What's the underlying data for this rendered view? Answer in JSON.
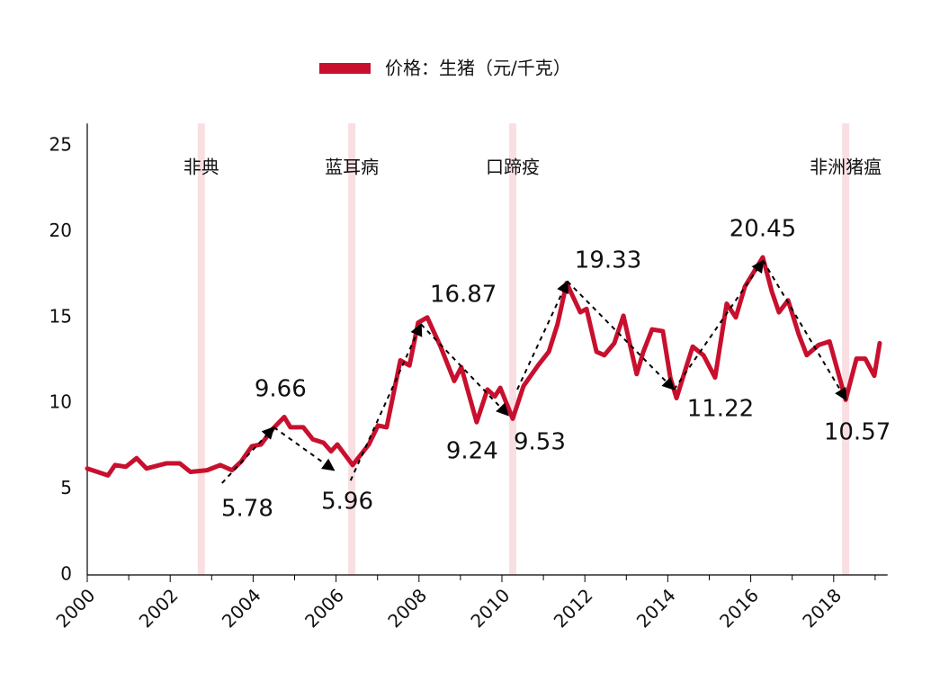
{
  "chart_data": {
    "type": "line",
    "legend": "价格：生猪（元/千克）",
    "series": [
      {
        "name": "价格：生猪（元/千克）",
        "color": "#c8102e",
        "x": [
          2000.0,
          2000.5,
          2000.67,
          2000.93,
          2001.19,
          2001.43,
          2001.91,
          2002.23,
          2002.49,
          2002.89,
          2003.21,
          2003.49,
          2003.71,
          2003.97,
          2004.19,
          2004.47,
          2004.75,
          2004.9,
          2005.21,
          2005.44,
          2005.7,
          2005.88,
          2006.03,
          2006.4,
          2006.79,
          2007.01,
          2007.22,
          2007.55,
          2007.77,
          2007.98,
          2008.2,
          2008.52,
          2008.85,
          2009.02,
          2009.39,
          2009.65,
          2009.83,
          2009.96,
          2010.26,
          2010.52,
          2010.87,
          2011.13,
          2011.34,
          2011.56,
          2011.89,
          2012.04,
          2012.28,
          2012.47,
          2012.71,
          2012.93,
          2013.25,
          2013.41,
          2013.62,
          2013.88,
          2014.06,
          2014.21,
          2014.43,
          2014.6,
          2014.86,
          2015.14,
          2015.42,
          2015.64,
          2015.86,
          2016.29,
          2016.51,
          2016.68,
          2016.9,
          2017.16,
          2017.35,
          2017.64,
          2017.9,
          2018.29,
          2018.55,
          2018.76,
          2018.98,
          2019.11
        ],
        "values": [
          6.2,
          5.8,
          6.4,
          6.3,
          6.8,
          6.2,
          6.5,
          6.5,
          6.0,
          6.1,
          6.4,
          6.1,
          6.6,
          7.5,
          7.6,
          8.5,
          9.2,
          8.6,
          8.6,
          7.9,
          7.7,
          7.2,
          7.6,
          6.4,
          7.6,
          8.7,
          8.6,
          12.5,
          12.2,
          14.7,
          15.0,
          13.3,
          11.3,
          12.1,
          8.9,
          10.8,
          10.4,
          10.9,
          9.1,
          11.0,
          12.2,
          13.0,
          14.6,
          17.0,
          15.3,
          15.5,
          13.0,
          12.8,
          13.5,
          15.1,
          11.7,
          13.0,
          14.3,
          14.2,
          11.5,
          10.3,
          12.0,
          13.3,
          12.8,
          11.5,
          15.8,
          15.0,
          16.8,
          18.5,
          16.5,
          15.3,
          16.0,
          14.0,
          12.8,
          13.4,
          13.6,
          10.2,
          12.6,
          12.6,
          11.6,
          13.5
        ]
      }
    ],
    "xlim": [
      2000,
      2019.3
    ],
    "ylim": [
      0,
      26.3
    ],
    "xticks": [
      2000,
      2002,
      2004,
      2006,
      2008,
      2010,
      2012,
      2014,
      2016,
      2018
    ],
    "xminorticks": [
      2001,
      2003,
      2005,
      2007,
      2009,
      2011,
      2013,
      2015,
      2017,
      2019
    ],
    "yticks": [
      0,
      5,
      10,
      15,
      20,
      25
    ],
    "events": [
      {
        "x": 2002.75,
        "label": "非典"
      },
      {
        "x": 2006.38,
        "label": "蓝耳病"
      },
      {
        "x": 2010.26,
        "label": "口蹄疫"
      },
      {
        "x": 2018.29,
        "label": "非洲猪瘟"
      }
    ],
    "arrows": [
      {
        "from": [
          2003.25,
          5.35
        ],
        "to": [
          2004.5,
          8.6
        ]
      },
      {
        "from": [
          2004.5,
          8.6
        ],
        "to": [
          2005.95,
          6.1
        ]
      },
      {
        "from": [
          2006.35,
          5.5
        ],
        "to": [
          2008.05,
          14.6
        ]
      },
      {
        "from": [
          2008.05,
          14.6
        ],
        "to": [
          2010.15,
          9.3
        ]
      },
      {
        "from": [
          2010.37,
          10.8
        ],
        "to": [
          2011.58,
          17.1
        ]
      },
      {
        "from": [
          2011.58,
          17.1
        ],
        "to": [
          2014.15,
          10.8
        ]
      },
      {
        "from": [
          2014.15,
          10.8
        ],
        "to": [
          2016.3,
          18.3
        ]
      },
      {
        "from": [
          2016.3,
          18.3
        ],
        "to": [
          2018.3,
          10.2
        ]
      }
    ],
    "annotations": [
      {
        "text": "5.78",
        "x": 2003.86,
        "y": 3.83
      },
      {
        "text": "9.66",
        "x": 2004.66,
        "y": 10.8
      },
      {
        "text": "5.96",
        "x": 2006.27,
        "y": 4.25
      },
      {
        "text": "16.87",
        "x": 2009.07,
        "y": 16.3
      },
      {
        "text": "9.24",
        "x": 2009.28,
        "y": 7.18
      },
      {
        "text": "9.53",
        "x": 2010.91,
        "y": 7.7
      },
      {
        "text": "19.33",
        "x": 2012.56,
        "y": 18.3
      },
      {
        "text": "11.22",
        "x": 2015.27,
        "y": 9.64
      },
      {
        "text": "20.45",
        "x": 2016.29,
        "y": 20.13
      },
      {
        "text": "10.57",
        "x": 2018.57,
        "y": 8.28
      }
    ]
  }
}
